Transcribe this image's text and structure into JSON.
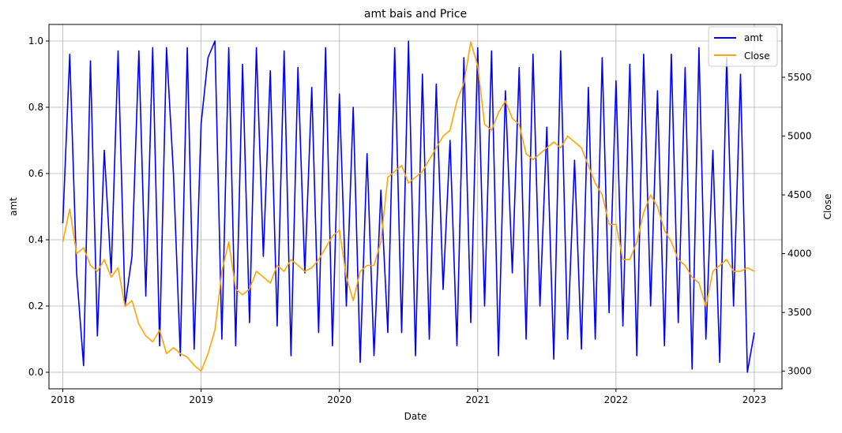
{
  "chart_data": {
    "type": "line",
    "title": "amt bais and Price",
    "xlabel": "Date",
    "ylabel_left": "amt",
    "ylabel_right": "Close",
    "grid": true,
    "legend_position": "top-right",
    "x_range": [
      2017.9,
      2023.2
    ],
    "x_ticks": [
      "2018",
      "2019",
      "2020",
      "2021",
      "2022",
      "2023"
    ],
    "x_tick_values": [
      2018,
      2019,
      2020,
      2021,
      2022,
      2023
    ],
    "y_left_range": [
      -0.05,
      1.05
    ],
    "y_left_ticks": [
      "0.0",
      "0.2",
      "0.4",
      "0.6",
      "0.8",
      "1.0"
    ],
    "y_left_tick_values": [
      0.0,
      0.2,
      0.4,
      0.6,
      0.8,
      1.0
    ],
    "y_right_range": [
      2850,
      5950
    ],
    "y_right_ticks": [
      "3000",
      "3500",
      "4000",
      "4500",
      "5000",
      "5500"
    ],
    "y_right_tick_values": [
      3000,
      3500,
      4000,
      4500,
      5000,
      5500
    ],
    "series": [
      {
        "name": "amt",
        "axis": "left",
        "color": "#0000ff",
        "x": [
          2018.0,
          2018.05,
          2018.1,
          2018.15,
          2018.2,
          2018.25,
          2018.3,
          2018.35,
          2018.4,
          2018.45,
          2018.5,
          2018.55,
          2018.6,
          2018.65,
          2018.7,
          2018.75,
          2018.8,
          2018.85,
          2018.9,
          2018.95,
          2019.0,
          2019.05,
          2019.1,
          2019.15,
          2019.2,
          2019.25,
          2019.3,
          2019.35,
          2019.4,
          2019.45,
          2019.5,
          2019.55,
          2019.6,
          2019.65,
          2019.7,
          2019.75,
          2019.8,
          2019.85,
          2019.9,
          2019.95,
          2020.0,
          2020.05,
          2020.1,
          2020.15,
          2020.2,
          2020.25,
          2020.3,
          2020.35,
          2020.4,
          2020.45,
          2020.5,
          2020.55,
          2020.6,
          2020.65,
          2020.7,
          2020.75,
          2020.8,
          2020.85,
          2020.9,
          2020.95,
          2021.0,
          2021.05,
          2021.1,
          2021.15,
          2021.2,
          2021.25,
          2021.3,
          2021.35,
          2021.4,
          2021.45,
          2021.5,
          2021.55,
          2021.6,
          2021.65,
          2021.7,
          2021.75,
          2021.8,
          2021.85,
          2021.9,
          2021.95,
          2022.0,
          2022.05,
          2022.1,
          2022.15,
          2022.2,
          2022.25,
          2022.3,
          2022.35,
          2022.4,
          2022.45,
          2022.5,
          2022.55,
          2022.6,
          2022.65,
          2022.7,
          2022.75,
          2022.8,
          2022.85,
          2022.9,
          2022.95,
          2023.0
        ],
        "values": [
          0.45,
          0.96,
          0.3,
          0.02,
          0.94,
          0.11,
          0.67,
          0.3,
          0.97,
          0.2,
          0.35,
          0.97,
          0.23,
          0.98,
          0.08,
          0.98,
          0.6,
          0.05,
          0.98,
          0.07,
          0.75,
          0.95,
          1.0,
          0.1,
          0.98,
          0.08,
          0.93,
          0.15,
          0.98,
          0.35,
          0.91,
          0.14,
          0.97,
          0.05,
          0.92,
          0.3,
          0.86,
          0.12,
          0.98,
          0.08,
          0.84,
          0.2,
          0.8,
          0.03,
          0.66,
          0.05,
          0.55,
          0.12,
          0.98,
          0.12,
          1.0,
          0.05,
          0.9,
          0.1,
          0.87,
          0.25,
          0.7,
          0.08,
          0.95,
          0.15,
          0.98,
          0.2,
          0.97,
          0.05,
          0.85,
          0.3,
          0.92,
          0.1,
          0.96,
          0.2,
          0.74,
          0.04,
          0.97,
          0.1,
          0.64,
          0.07,
          0.86,
          0.1,
          0.95,
          0.18,
          0.88,
          0.14,
          0.93,
          0.05,
          0.96,
          0.2,
          0.85,
          0.08,
          0.96,
          0.15,
          0.92,
          0.01,
          0.98,
          0.1,
          0.67,
          0.03,
          0.95,
          0.2,
          0.9,
          0.0,
          0.12
        ]
      },
      {
        "name": "Close",
        "axis": "right",
        "color": "#ffa500",
        "x": [
          2018.0,
          2018.05,
          2018.1,
          2018.15,
          2018.2,
          2018.25,
          2018.3,
          2018.35,
          2018.4,
          2018.45,
          2018.5,
          2018.55,
          2018.6,
          2018.65,
          2018.7,
          2018.75,
          2018.8,
          2018.85,
          2018.9,
          2018.95,
          2019.0,
          2019.05,
          2019.1,
          2019.15,
          2019.2,
          2019.25,
          2019.3,
          2019.35,
          2019.4,
          2019.45,
          2019.5,
          2019.55,
          2019.6,
          2019.65,
          2019.7,
          2019.75,
          2019.8,
          2019.85,
          2019.9,
          2019.95,
          2020.0,
          2020.05,
          2020.1,
          2020.15,
          2020.2,
          2020.25,
          2020.3,
          2020.35,
          2020.4,
          2020.45,
          2020.5,
          2020.55,
          2020.6,
          2020.65,
          2020.7,
          2020.75,
          2020.8,
          2020.85,
          2020.9,
          2020.95,
          2021.0,
          2021.05,
          2021.1,
          2021.15,
          2021.2,
          2021.25,
          2021.3,
          2021.35,
          2021.4,
          2021.45,
          2021.5,
          2021.55,
          2021.6,
          2021.65,
          2021.7,
          2021.75,
          2021.8,
          2021.85,
          2021.9,
          2021.95,
          2022.0,
          2022.05,
          2022.1,
          2022.15,
          2022.2,
          2022.25,
          2022.3,
          2022.35,
          2022.4,
          2022.45,
          2022.5,
          2022.55,
          2022.6,
          2022.65,
          2022.7,
          2022.75,
          2022.8,
          2022.85,
          2022.9,
          2022.95,
          2023.0
        ],
        "values": [
          4100,
          4380,
          4000,
          4050,
          3900,
          3850,
          3950,
          3800,
          3880,
          3550,
          3600,
          3400,
          3300,
          3250,
          3350,
          3150,
          3200,
          3150,
          3120,
          3050,
          3000,
          3150,
          3350,
          3850,
          4100,
          3700,
          3650,
          3700,
          3850,
          3800,
          3750,
          3900,
          3850,
          3950,
          3900,
          3850,
          3880,
          3950,
          4050,
          4150,
          4200,
          3800,
          3600,
          3850,
          3900,
          3900,
          4100,
          4650,
          4700,
          4750,
          4600,
          4650,
          4700,
          4800,
          4900,
          5000,
          5050,
          5300,
          5450,
          5800,
          5600,
          5100,
          5050,
          5200,
          5300,
          5150,
          5100,
          4850,
          4800,
          4850,
          4900,
          4950,
          4900,
          5000,
          4950,
          4900,
          4750,
          4600,
          4500,
          4250,
          4250,
          3950,
          3950,
          4100,
          4350,
          4500,
          4400,
          4200,
          4100,
          3950,
          3900,
          3800,
          3750,
          3550,
          3850,
          3900,
          3950,
          3850,
          3850,
          3880,
          3850
        ]
      }
    ]
  }
}
